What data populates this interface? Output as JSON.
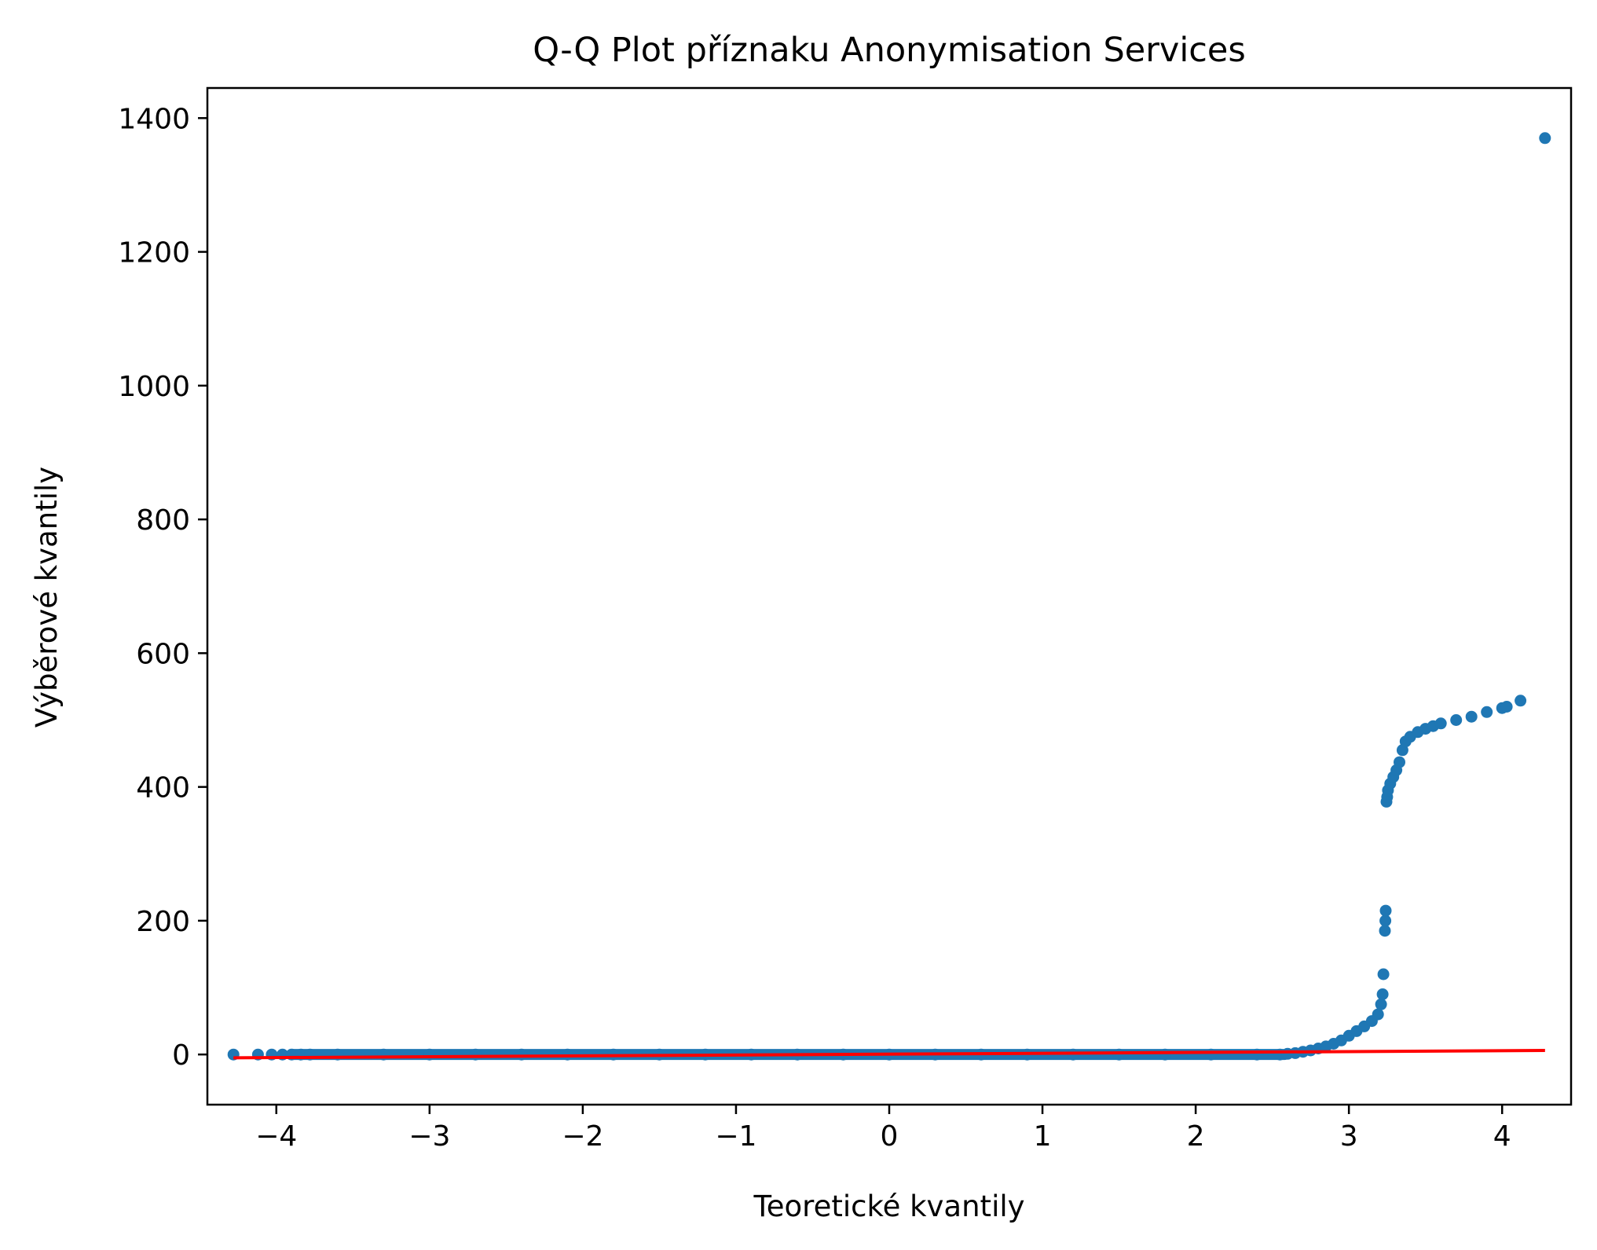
{
  "chart_data": {
    "type": "scatter",
    "title": "Q-Q Plot příznaku Anonymisation Services",
    "xlabel": "Teoretické kvantily",
    "ylabel": "Výběrové kvantily",
    "xlim": [
      -4.45,
      4.45
    ],
    "ylim": [
      -75,
      1445
    ],
    "xticks": [
      -4,
      -3,
      -2,
      -1,
      0,
      1,
      2,
      3,
      4
    ],
    "xtick_labels": [
      "−4",
      "−3",
      "−2",
      "−1",
      "0",
      "1",
      "2",
      "3",
      "4"
    ],
    "yticks": [
      0,
      200,
      400,
      600,
      800,
      1000,
      1200,
      1400
    ],
    "ytick_labels": [
      "0",
      "200",
      "400",
      "600",
      "800",
      "1000",
      "1200",
      "1400"
    ],
    "grid": false,
    "marker_color": "#1f77b4",
    "line_color": "#ff0000",
    "points": [
      [
        -4.28,
        0
      ],
      [
        -4.12,
        0
      ],
      [
        -4.03,
        0
      ],
      [
        -3.96,
        0
      ],
      [
        -3.9,
        0
      ],
      [
        -3.84,
        0
      ],
      [
        -3.78,
        0
      ],
      [
        -3.6,
        0
      ],
      [
        -3.3,
        0
      ],
      [
        -3.0,
        0
      ],
      [
        -2.7,
        0
      ],
      [
        -2.4,
        0
      ],
      [
        -2.1,
        0
      ],
      [
        -1.8,
        0
      ],
      [
        -1.5,
        0
      ],
      [
        -1.2,
        0
      ],
      [
        -0.9,
        0
      ],
      [
        -0.6,
        0
      ],
      [
        -0.3,
        0
      ],
      [
        0.0,
        0
      ],
      [
        0.3,
        0
      ],
      [
        0.6,
        0
      ],
      [
        0.9,
        0
      ],
      [
        1.2,
        0
      ],
      [
        1.5,
        0
      ],
      [
        1.8,
        0
      ],
      [
        2.1,
        0
      ],
      [
        2.4,
        0
      ],
      [
        2.55,
        0
      ],
      [
        2.6,
        1
      ],
      [
        2.65,
        2
      ],
      [
        2.7,
        4
      ],
      [
        2.75,
        6
      ],
      [
        2.8,
        9
      ],
      [
        2.85,
        12
      ],
      [
        2.9,
        16
      ],
      [
        2.95,
        21
      ],
      [
        3.0,
        28
      ],
      [
        3.05,
        35
      ],
      [
        3.1,
        42
      ],
      [
        3.15,
        50
      ],
      [
        3.19,
        60
      ],
      [
        3.21,
        75
      ],
      [
        3.22,
        90
      ],
      [
        3.225,
        120
      ],
      [
        3.235,
        185
      ],
      [
        3.238,
        200
      ],
      [
        3.24,
        215
      ],
      [
        3.245,
        378
      ],
      [
        3.25,
        385
      ],
      [
        3.255,
        395
      ],
      [
        3.27,
        405
      ],
      [
        3.29,
        415
      ],
      [
        3.31,
        425
      ],
      [
        3.33,
        437
      ],
      [
        3.35,
        455
      ],
      [
        3.37,
        468
      ],
      [
        3.4,
        475
      ],
      [
        3.45,
        482
      ],
      [
        3.5,
        487
      ],
      [
        3.55,
        491
      ],
      [
        3.6,
        495
      ],
      [
        3.7,
        500
      ],
      [
        3.8,
        505
      ],
      [
        3.9,
        512
      ],
      [
        4.0,
        518
      ],
      [
        4.03,
        520
      ],
      [
        4.12,
        529
      ],
      [
        4.28,
        1370
      ]
    ],
    "fit_line": [
      [
        -4.28,
        -5
      ],
      [
        4.28,
        6
      ]
    ]
  }
}
